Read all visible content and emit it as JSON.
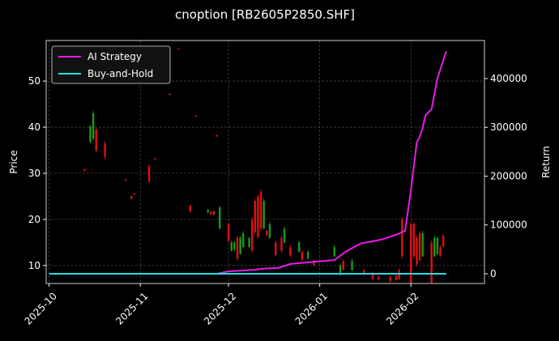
{
  "chart_data": {
    "type": "candlestick",
    "title": "cnoption [RB2605P2850.SHF]",
    "y_label": "Price",
    "y2_label": "Return",
    "xlim": [
      "2025-09-30",
      "2026-02-26"
    ],
    "xticks": [
      {
        "value": "2025-10-01",
        "label": "2025-10"
      },
      {
        "value": "2025-11-01",
        "label": "2025-11"
      },
      {
        "value": "2025-12-01",
        "label": "2025-12"
      },
      {
        "value": "2026-01-01",
        "label": "2026-01"
      },
      {
        "value": "2026-02-01",
        "label": "2026-02"
      }
    ],
    "ylim": [
      6.1,
      58.8
    ],
    "yticks": [
      10,
      20,
      30,
      40,
      50
    ],
    "y2lim": [
      -20000,
      478000
    ],
    "y2ticks": [
      0,
      100000,
      200000,
      300000,
      400000
    ],
    "grid": true,
    "legend": "upper left",
    "up_color": "#1a9a1a",
    "down_color": "#e01010",
    "candles": {
      "x": [
        "2025-10-13",
        "2025-10-15",
        "2025-10-16",
        "2025-10-17",
        "2025-10-20",
        "2025-10-27",
        "2025-10-29",
        "2025-10-30",
        "2025-11-04",
        "2025-11-06",
        "2025-11-11",
        "2025-11-14",
        "2025-11-18",
        "2025-11-20",
        "2025-11-24",
        "2025-11-25",
        "2025-11-26",
        "2025-11-27",
        "2025-11-28",
        "2025-12-01",
        "2025-12-02",
        "2025-12-03",
        "2025-12-04",
        "2025-12-05",
        "2025-12-06",
        "2025-12-08",
        "2025-12-09",
        "2025-12-10",
        "2025-12-11",
        "2025-12-12",
        "2025-12-13",
        "2025-12-14",
        "2025-12-15",
        "2025-12-17",
        "2025-12-19",
        "2025-12-20",
        "2025-12-22",
        "2025-12-25",
        "2025-12-26",
        "2025-12-28",
        "2025-12-30",
        "2026-01-06",
        "2026-01-08",
        "2026-01-09",
        "2026-01-12",
        "2026-01-16",
        "2026-01-19",
        "2026-01-21",
        "2026-01-25",
        "2026-01-27",
        "2026-01-28",
        "2026-01-29",
        "2026-02-01",
        "2026-02-02",
        "2026-02-03",
        "2026-02-04",
        "2026-02-05",
        "2026-02-08",
        "2026-02-09",
        "2026-02-10",
        "2026-02-11",
        "2026-02-12"
      ],
      "open": [
        30.8,
        36.8,
        37.5,
        39.5,
        36.5,
        28.6,
        25,
        25.6,
        31.5,
        33.2,
        47.2,
        57,
        23,
        42.4,
        21.5,
        21.6,
        21.8,
        38.2,
        18,
        19,
        13.2,
        13.5,
        16,
        12.5,
        14,
        14,
        20,
        24,
        25,
        26,
        18,
        17.5,
        16,
        15,
        16,
        15,
        14,
        13,
        13,
        11.5,
        11,
        12,
        8,
        11,
        9,
        9,
        8.2,
        7.6,
        7.5,
        7.8,
        9,
        20,
        19,
        19,
        16,
        17,
        12,
        15,
        12,
        12.5,
        14,
        16.5
      ],
      "high": [
        31,
        40.5,
        43.5,
        40,
        37,
        28.8,
        25.2,
        25.8,
        32,
        33.4,
        47.4,
        57.2,
        23.2,
        42.6,
        22.3,
        21.8,
        22,
        38.4,
        23,
        19.3,
        15.5,
        15.3,
        16.5,
        16.5,
        17.5,
        16.2,
        20.5,
        24.5,
        25.5,
        26.5,
        24.5,
        17.8,
        19.5,
        15.5,
        16.5,
        18.5,
        14.5,
        15.3,
        13.3,
        13.3,
        11.3,
        14.5,
        10.5,
        11.4,
        11.5,
        9.3,
        8.5,
        7.9,
        7.8,
        8,
        9.4,
        20.5,
        19.5,
        19.4,
        16.5,
        17.5,
        17.5,
        15.5,
        16.5,
        16.3,
        14.5,
        16.8
      ],
      "low": [
        30.4,
        36.5,
        37,
        34.5,
        33,
        28.3,
        24.3,
        25.3,
        27.8,
        32.9,
        46.9,
        56.8,
        21.5,
        42.2,
        21.3,
        21,
        20.8,
        37.9,
        17.8,
        15,
        13,
        13,
        11,
        12.3,
        13.8,
        13.8,
        12.8,
        16.8,
        15.8,
        17.5,
        17.8,
        16.3,
        15.8,
        12,
        12.8,
        14.8,
        11.8,
        12.8,
        10.8,
        11.3,
        9.8,
        11.8,
        7.8,
        8.8,
        8.8,
        7.8,
        6.8,
        6.8,
        6.3,
        6.6,
        6.8,
        11.5,
        5.8,
        11.5,
        9.8,
        10.8,
        11.8,
        5.8,
        11.8,
        12.3,
        11.8,
        13.8
      ],
      "close": [
        30.5,
        40.2,
        43,
        35,
        33.5,
        28.4,
        24.5,
        25.4,
        28.2,
        33,
        47,
        56.9,
        21.7,
        42.3,
        22,
        21.1,
        21,
        38,
        22.6,
        15.3,
        15,
        15,
        11.5,
        16,
        17,
        16,
        13.2,
        17.2,
        16.2,
        18,
        24,
        16.6,
        19,
        12.3,
        13.2,
        18,
        12.2,
        15,
        11.2,
        13,
        10.1,
        14,
        10,
        9.1,
        11,
        8.1,
        7.1,
        7,
        6.6,
        6.9,
        7.1,
        12,
        6.2,
        12,
        10.2,
        11.2,
        17,
        6.2,
        16,
        16,
        12.2,
        14.2
      ]
    },
    "series": [
      {
        "name": "AI Strategy",
        "color": "#e81ce8",
        "axis": "y2",
        "x": [
          "2025-10-01",
          "2025-11-27",
          "2025-12-01",
          "2025-12-10",
          "2025-12-12",
          "2025-12-18",
          "2025-12-22",
          "2025-12-31",
          "2026-01-06",
          "2026-01-10",
          "2026-01-15",
          "2026-01-22",
          "2026-01-27",
          "2026-01-30",
          "2026-02-01",
          "2026-02-03",
          "2026-02-04",
          "2026-02-05",
          "2026-02-06",
          "2026-02-08",
          "2026-02-10",
          "2026-02-13"
        ],
        "values": [
          0,
          0,
          5000,
          8000,
          10000,
          12000,
          20000,
          25000,
          28000,
          46000,
          62000,
          70000,
          80000,
          88000,
          171000,
          270000,
          280000,
          300000,
          325000,
          337000,
          400000,
          456000
        ]
      },
      {
        "name": "Buy-and-Hold",
        "color": "#1ee0e8",
        "axis": "y2",
        "x": [
          "2025-10-01",
          "2025-12-01",
          "2026-01-01",
          "2026-02-13"
        ],
        "values": [
          0,
          0,
          0,
          0
        ]
      }
    ]
  }
}
